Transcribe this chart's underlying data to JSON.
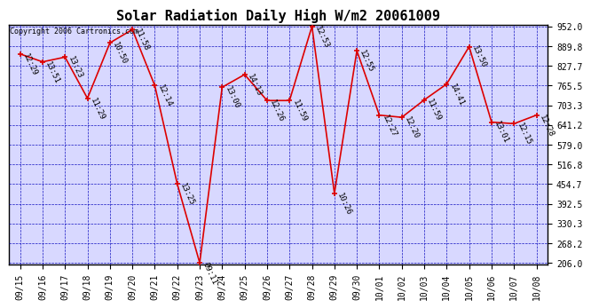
{
  "title": "Solar Radiation Daily High W/m2 20061009",
  "copyright": "Copyright 2006 Cartronics.com",
  "background_color": "#FFFFFF",
  "plot_bg_color": "#D8D8FF",
  "grid_color": "#0000BB",
  "line_color": "#DD0000",
  "dates": [
    "09/15",
    "09/16",
    "09/17",
    "09/18",
    "09/19",
    "09/20",
    "09/21",
    "09/22",
    "09/23",
    "09/24",
    "09/25",
    "09/26",
    "09/27",
    "09/28",
    "09/29",
    "09/30",
    "10/01",
    "10/02",
    "10/03",
    "10/04",
    "10/05",
    "10/06",
    "10/07",
    "10/08"
  ],
  "values": [
    865,
    840,
    855,
    725,
    900,
    942,
    765,
    455,
    206,
    760,
    800,
    718,
    718,
    952,
    425,
    875,
    672,
    665,
    720,
    770,
    888,
    650,
    645,
    672
  ],
  "time_labels": [
    "12:29",
    "13:51",
    "13:23",
    "11:29",
    "10:50",
    "11:58",
    "12:14",
    "13:25",
    "09:11",
    "13:00",
    "14:13",
    "12:26",
    "11:59",
    "12:53",
    "10:26",
    "12:55",
    "12:27",
    "12:20",
    "11:59",
    "14:41",
    "13:50",
    "13:01",
    "12:15",
    "12:28"
  ],
  "yticks": [
    206.0,
    268.2,
    330.3,
    392.5,
    454.7,
    516.8,
    579.0,
    641.2,
    703.3,
    765.5,
    827.7,
    889.8,
    952.0
  ],
  "ymin": 206.0,
  "ymax": 952.0,
  "title_fontsize": 11,
  "label_fontsize": 6.5,
  "tick_fontsize": 7,
  "copyright_fontsize": 6
}
